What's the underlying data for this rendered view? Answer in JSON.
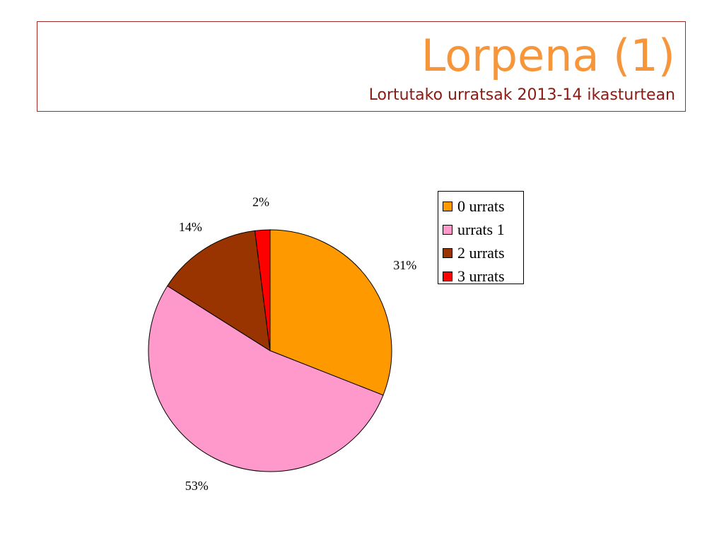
{
  "header": {
    "title": "Lorpena (1)",
    "subtitle": "Lortutako urratsak 2013-14 ikasturtean"
  },
  "colors": {
    "title": "#f7953a",
    "subtitle": "#8b1a12",
    "frame": "#a52a2a"
  },
  "chart_data": {
    "type": "pie",
    "title": "",
    "legend_position": "right",
    "slices": [
      {
        "name": "0 urrats",
        "value": 31,
        "label": "31%",
        "color": "#ff9900"
      },
      {
        "name": "urrats 1",
        "value": 53,
        "label": "53%",
        "color": "#ff99cc"
      },
      {
        "name": "2 urrats",
        "value": 14,
        "label": "14%",
        "color": "#993300"
      },
      {
        "name": "3 urrats",
        "value": 2,
        "label": "2%",
        "color": "#ff0000"
      }
    ]
  }
}
